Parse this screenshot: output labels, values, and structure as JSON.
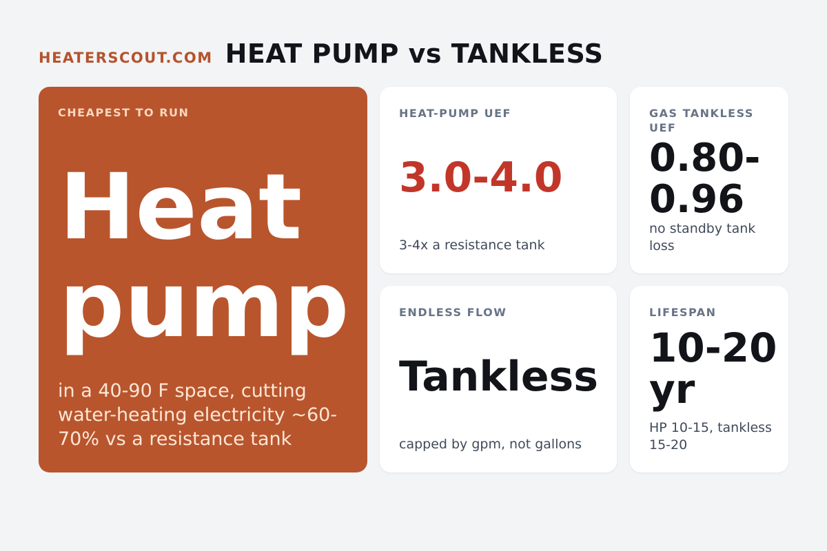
{
  "header": {
    "brand": "HEATERSCOUT.COM",
    "title": "HEAT PUMP vs TANKLESS"
  },
  "hero": {
    "kicker": "CHEAPEST TO RUN",
    "headline": "Heat pump",
    "subtext": "in a 40-90 F space, cutting water-heating electricity ~60-70% vs a resistance tank"
  },
  "cards": [
    {
      "label": "HEAT-PUMP UEF",
      "value": "3.0-4.0",
      "note": "3-4x a resistance tank"
    },
    {
      "label": "GAS TANKLESS UEF",
      "value": "0.80-0.96",
      "note": "no standby tank loss"
    },
    {
      "label": "ENDLESS FLOW",
      "value": "Tankless",
      "note": "capped by gpm, not gallons"
    },
    {
      "label": "LIFESPAN",
      "value": "10-20 yr",
      "note": "HP 10-15, tankless 15-20"
    }
  ],
  "colors": {
    "accent": "#b8552d",
    "value_red": "#c2362a",
    "background": "#f3f4f6"
  }
}
